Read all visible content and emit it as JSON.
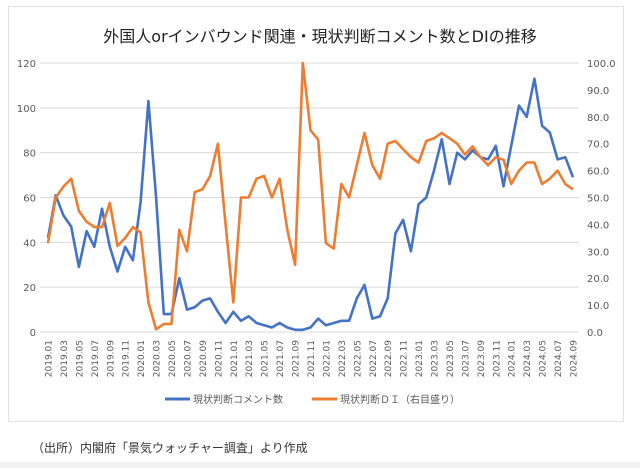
{
  "chart_data": {
    "type": "line",
    "title": "外国人orインバウンド関連・現状判断コメント数とDIの推移",
    "xlabel": "",
    "ylabel": "",
    "y_left_lim": [
      0,
      120
    ],
    "y_left_ticks": [
      "0",
      "20",
      "40",
      "60",
      "80",
      "100",
      "120"
    ],
    "y_right_lim": [
      0,
      100
    ],
    "y_right_ticks": [
      "0.0",
      "10.0",
      "20.0",
      "30.0",
      "40.0",
      "50.0",
      "60.0",
      "70.0",
      "80.0",
      "90.0",
      "100.0"
    ],
    "grid": true,
    "legend_position": "bottom",
    "x": [
      "2019.01",
      "2019.02",
      "2019.03",
      "2019.04",
      "2019.05",
      "2019.06",
      "2019.07",
      "2019.08",
      "2019.09",
      "2019.10",
      "2019.11",
      "2019.12",
      "2020.01",
      "2020.02",
      "2020.03",
      "2020.04",
      "2020.05",
      "2020.06",
      "2020.07",
      "2020.08",
      "2020.09",
      "2020.10",
      "2020.11",
      "2020.12",
      "2021.01",
      "2021.02",
      "2021.03",
      "2021.04",
      "2021.05",
      "2021.06",
      "2021.07",
      "2021.08",
      "2021.09",
      "2021.10",
      "2021.11",
      "2021.12",
      "2022.01",
      "2022.02",
      "2022.03",
      "2022.04",
      "2022.05",
      "2022.06",
      "2022.07",
      "2022.08",
      "2022.09",
      "2022.10",
      "2022.11",
      "2022.12",
      "2023.01",
      "2023.02",
      "2023.03",
      "2023.04",
      "2023.05",
      "2023.06",
      "2023.07",
      "2023.08",
      "2023.09",
      "2023.10",
      "2023.11",
      "2023.12",
      "2024.01",
      "2024.02",
      "2024.03",
      "2024.04",
      "2024.05",
      "2024.06",
      "2024.07",
      "2024.08",
      "2024.09"
    ],
    "x_tick_labels": [
      "2019.01",
      "2019.03",
      "2019.05",
      "2019.07",
      "2019.09",
      "2019.11",
      "2020.01",
      "2020.03",
      "2020.05",
      "2020.07",
      "2020.09",
      "2020.11",
      "2021.01",
      "2021.03",
      "2021.05",
      "2021.07",
      "2021.09",
      "2021.11",
      "2022.01",
      "2022.03",
      "2022.05",
      "2022.07",
      "2022.09",
      "2022.11",
      "2023.01",
      "2023.03",
      "2023.05",
      "2023.07",
      "2023.09",
      "2023.11",
      "2024.01",
      "2024.03",
      "2024.05",
      "2024.07",
      "2024.09"
    ],
    "series": [
      {
        "name": "現状判断コメント数",
        "axis": "left",
        "color": "#4472C4",
        "values": [
          42,
          61,
          52,
          47,
          29,
          45,
          38,
          55,
          38,
          27,
          38,
          32,
          58,
          103,
          60,
          8,
          8,
          24,
          10,
          11,
          14,
          15,
          9,
          4,
          9,
          5,
          7,
          4,
          3,
          2,
          4,
          2,
          1,
          1,
          2,
          6,
          3,
          4,
          5,
          5,
          15,
          21,
          6,
          7,
          15,
          44,
          50,
          36,
          57,
          60,
          72,
          86,
          66,
          80,
          77,
          81,
          78,
          77,
          83,
          65,
          83,
          101,
          96,
          113,
          92,
          89,
          77,
          78,
          69
        ]
      },
      {
        "name": "現状判断ＤＩ（右目盛り）",
        "axis": "right",
        "color": "#ED7D31",
        "values": [
          33,
          50,
          54,
          57,
          45,
          41,
          39,
          39,
          48,
          32,
          35,
          39,
          37,
          11,
          1,
          3,
          3,
          38,
          30,
          52,
          53,
          58,
          70,
          40,
          11,
          50,
          50,
          57,
          58,
          50,
          57,
          38,
          25,
          100,
          75,
          71.5,
          33,
          31,
          55,
          50,
          62,
          74,
          62,
          57,
          70,
          71,
          68,
          65,
          63,
          71,
          72,
          74,
          72,
          70,
          66,
          69,
          65,
          62,
          65,
          64,
          55,
          60,
          63,
          63,
          55,
          57,
          60,
          55,
          53
        ]
      }
    ]
  },
  "source_note": "（出所）内閣府「景気ウォッチャー調査」より作成"
}
